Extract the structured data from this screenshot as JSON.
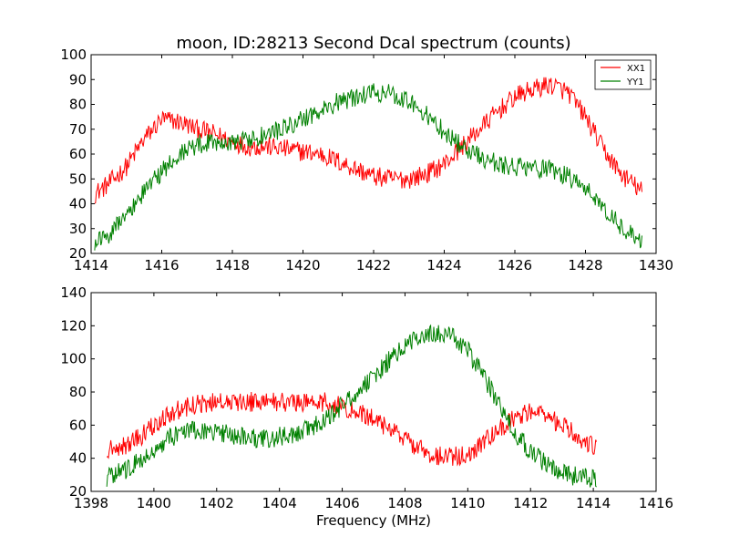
{
  "chart_data": [
    {
      "type": "line",
      "title": "moon, ID:28213 Second Dcal spectrum (counts)",
      "xlabel": "",
      "ylabel": "",
      "xlim": [
        1414,
        1430
      ],
      "ylim": [
        20,
        100
      ],
      "xticks": [
        1414,
        1416,
        1418,
        1420,
        1422,
        1424,
        1426,
        1428,
        1430
      ],
      "yticks": [
        20,
        30,
        40,
        50,
        60,
        70,
        80,
        90,
        100
      ],
      "grid": false,
      "legend": "top-right",
      "series": [
        {
          "name": "XX1",
          "color": "#ff0000",
          "x": [
            1414.1,
            1414.5,
            1415.0,
            1415.5,
            1416.0,
            1416.5,
            1417.0,
            1417.5,
            1418.0,
            1418.5,
            1419.0,
            1419.5,
            1420.0,
            1420.5,
            1421.0,
            1421.5,
            1422.0,
            1422.5,
            1423.0,
            1423.5,
            1424.0,
            1424.5,
            1425.0,
            1425.5,
            1426.0,
            1426.5,
            1427.0,
            1427.5,
            1428.0,
            1428.5,
            1429.0,
            1429.6
          ],
          "y": [
            44,
            48,
            55,
            66,
            74,
            73,
            70,
            68,
            65,
            63,
            63,
            62,
            61,
            60,
            57,
            54,
            51,
            50,
            50,
            52,
            56,
            63,
            70,
            77,
            83,
            86,
            88,
            85,
            75,
            62,
            52,
            45
          ]
        },
        {
          "name": "YY1",
          "color": "#008000",
          "x": [
            1414.1,
            1414.5,
            1415.0,
            1415.5,
            1416.0,
            1416.5,
            1417.0,
            1417.5,
            1418.0,
            1418.5,
            1419.0,
            1419.5,
            1420.0,
            1420.5,
            1421.0,
            1421.5,
            1422.0,
            1422.5,
            1423.0,
            1423.5,
            1424.0,
            1424.5,
            1425.0,
            1425.5,
            1426.0,
            1426.5,
            1427.0,
            1427.5,
            1428.0,
            1428.5,
            1429.0,
            1429.6
          ],
          "y": [
            25,
            28,
            35,
            45,
            53,
            60,
            64,
            65,
            65,
            66,
            68,
            71,
            74,
            77,
            81,
            83,
            85,
            84,
            82,
            76,
            69,
            63,
            59,
            56,
            55,
            54,
            54,
            51,
            46,
            38,
            31,
            25
          ]
        }
      ]
    },
    {
      "type": "line",
      "title": "",
      "xlabel": "Frequency (MHz)",
      "ylabel": "",
      "xlim": [
        1398,
        1416
      ],
      "ylim": [
        20,
        140
      ],
      "xticks": [
        1398,
        1400,
        1402,
        1404,
        1406,
        1408,
        1410,
        1412,
        1414,
        1416
      ],
      "yticks": [
        20,
        40,
        60,
        80,
        100,
        120,
        140
      ],
      "grid": false,
      "series": [
        {
          "color": "#ff0000",
          "x": [
            1398.5,
            1399.0,
            1399.5,
            1400.0,
            1400.5,
            1401.0,
            1401.5,
            1402.0,
            1402.5,
            1403.0,
            1403.5,
            1404.0,
            1404.5,
            1405.0,
            1405.5,
            1406.0,
            1406.5,
            1407.0,
            1407.5,
            1408.0,
            1408.5,
            1409.0,
            1409.5,
            1410.0,
            1410.5,
            1411.0,
            1411.5,
            1412.0,
            1412.5,
            1413.0,
            1413.5,
            1414.1
          ],
          "y": [
            46,
            47,
            52,
            60,
            67,
            71,
            73,
            74,
            74,
            74,
            74,
            74,
            74,
            74,
            74,
            71,
            68,
            64,
            58,
            51,
            45,
            42,
            41,
            43,
            49,
            57,
            65,
            68,
            66,
            60,
            53,
            46
          ]
        },
        {
          "color": "#008000",
          "x": [
            1398.5,
            1399.0,
            1399.5,
            1400.0,
            1400.5,
            1401.0,
            1401.5,
            1402.0,
            1402.5,
            1403.0,
            1403.5,
            1404.0,
            1404.5,
            1405.0,
            1405.5,
            1406.0,
            1406.5,
            1407.0,
            1407.5,
            1408.0,
            1408.5,
            1409.0,
            1409.5,
            1410.0,
            1410.5,
            1411.0,
            1411.5,
            1412.0,
            1412.5,
            1413.0,
            1413.5,
            1414.1
          ],
          "y": [
            28,
            32,
            38,
            45,
            52,
            56,
            57,
            56,
            54,
            52,
            52,
            53,
            55,
            59,
            64,
            72,
            80,
            89,
            99,
            108,
            113,
            115,
            113,
            105,
            90,
            72,
            56,
            44,
            36,
            31,
            29,
            27
          ]
        }
      ]
    }
  ]
}
